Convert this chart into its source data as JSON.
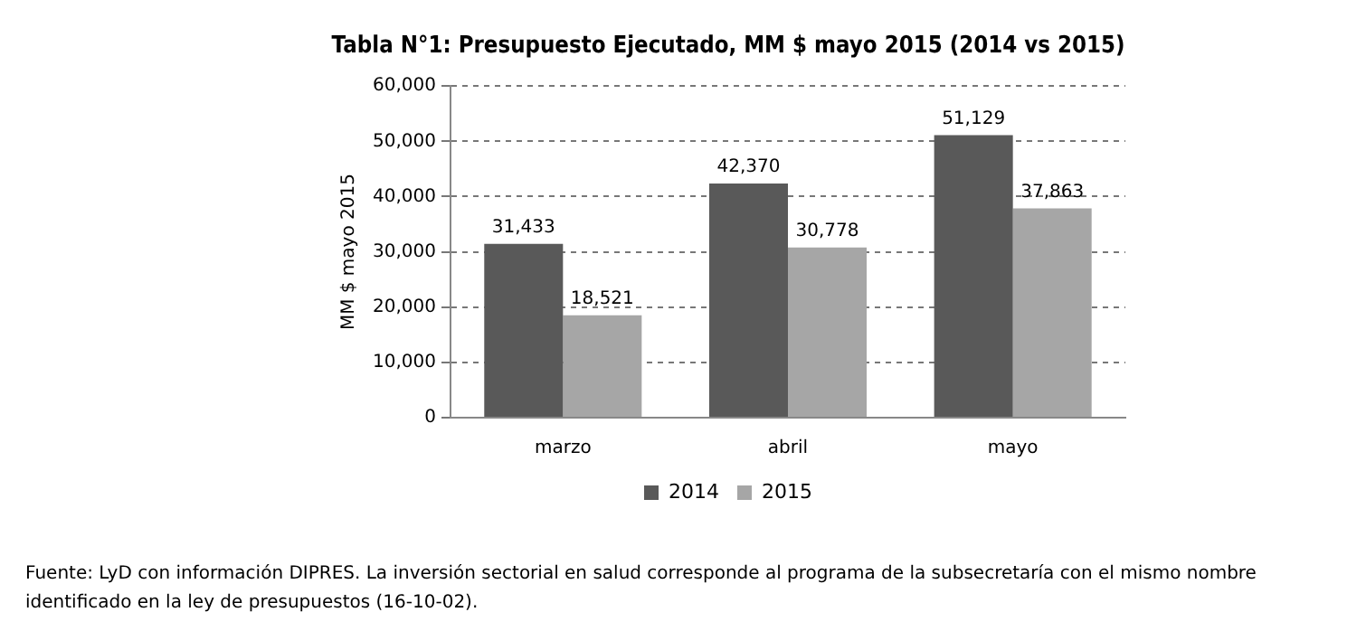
{
  "chart_data": {
    "type": "bar",
    "title": "Tabla N°1: Presupuesto Ejecutado, MM $ mayo 2015 (2014 vs 2015)",
    "ylabel": "MM $ mayo 2015",
    "categories": [
      "marzo",
      "abril",
      "mayo"
    ],
    "series": [
      {
        "name": "2014",
        "color": "#595959",
        "values": [
          31433,
          42370,
          51129
        ],
        "value_labels": [
          "31,433",
          "42,370",
          "51,129"
        ]
      },
      {
        "name": "2015",
        "color": "#a6a6a6",
        "values": [
          18521,
          30778,
          37863
        ],
        "value_labels": [
          "18,521",
          "30,778",
          "37,863"
        ]
      }
    ],
    "ylim": [
      0,
      60000
    ],
    "yticks": [
      {
        "value": 0,
        "label": "0"
      },
      {
        "value": 10000,
        "label": "10,000"
      },
      {
        "value": 20000,
        "label": "20,000"
      },
      {
        "value": 30000,
        "label": "30,000"
      },
      {
        "value": 40000,
        "label": "40,000"
      },
      {
        "value": 50000,
        "label": "50,000"
      },
      {
        "value": 60000,
        "label": "60,000"
      }
    ],
    "grid": "y",
    "legend": "bottom",
    "annotations": [
      "Fuente: LyD con información DIPRES. La inversión sectorial en salud corresponde al programa de la subsecretaría con el mismo nombre identificado en la ley de presupuestos (16-10-02)."
    ]
  }
}
